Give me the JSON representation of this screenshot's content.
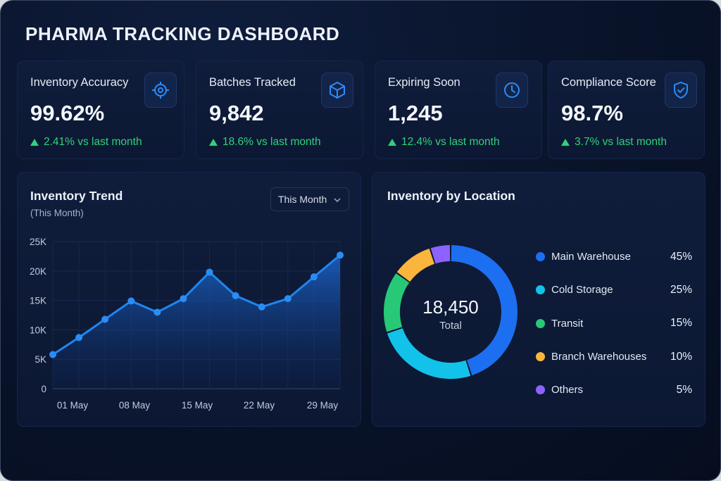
{
  "header": {
    "title": "PHARMA TRACKING DASHBOARD"
  },
  "kpis": [
    {
      "label": "Inventory Accuracy",
      "value": "99.62%",
      "delta": "2.41% vs last month",
      "icon": "target-icon"
    },
    {
      "label": "Batches Tracked",
      "value": "9,842",
      "delta": "18.6% vs last month",
      "icon": "box-icon"
    },
    {
      "label": "Expiring Soon",
      "value": "1,245",
      "delta": "12.4% vs last month",
      "icon": "clock-icon"
    },
    {
      "label": "Compliance Score",
      "value": "98.7%",
      "delta": "3.7% vs last month",
      "icon": "shield-check-icon"
    }
  ],
  "trend": {
    "title": "Inventory Trend",
    "subtitle": "(This Month)",
    "period_selected": "This Month"
  },
  "location": {
    "title": "Inventory by Location",
    "total_value": "18,450",
    "total_label": "Total"
  },
  "colors": {
    "accent": "#1f86f0",
    "positive": "#2fd27a",
    "main_warehouse": "#1d6ff2",
    "cold_storage": "#12c2e9",
    "transit": "#27c977",
    "branch_warehouses": "#fbb53c",
    "others": "#8d63ff"
  },
  "chart_data": [
    {
      "type": "area",
      "ylim": [
        0,
        25000
      ],
      "y_ticks": [
        "0",
        "5K",
        "10K",
        "15K",
        "20K",
        "25K"
      ],
      "y_tick_values": [
        0,
        5000,
        10000,
        15000,
        20000,
        25000
      ],
      "x_ticks": [
        "01 May",
        "08 May",
        "15 May",
        "22 May",
        "29 May"
      ],
      "grid": true,
      "series": [
        {
          "values": [
            5800,
            8700,
            11800,
            14900,
            13000,
            15300,
            19800,
            15800,
            13900,
            15300,
            19000,
            22700
          ]
        }
      ]
    },
    {
      "type": "pie",
      "donut": true,
      "slices": [
        {
          "label": "Main Warehouse",
          "value": 45,
          "display": "45%",
          "color": "#1d6ff2"
        },
        {
          "label": "Cold Storage",
          "value": 25,
          "display": "25%",
          "color": "#12c2e9"
        },
        {
          "label": "Transit",
          "value": 15,
          "display": "15%",
          "color": "#27c977"
        },
        {
          "label": "Branch Warehouses",
          "value": 10,
          "display": "10%",
          "color": "#fbb53c"
        },
        {
          "label": "Others",
          "value": 5,
          "display": "5%",
          "color": "#8d63ff"
        }
      ]
    }
  ]
}
